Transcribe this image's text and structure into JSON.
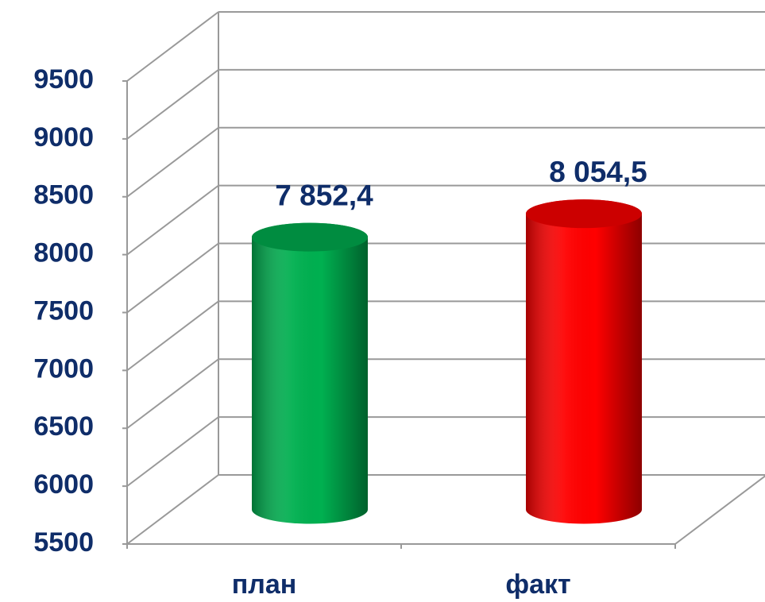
{
  "chart_data": {
    "type": "bar3d",
    "categories": [
      "план",
      "факт"
    ],
    "series": [
      {
        "values": [
          7852.4,
          8054.5
        ],
        "value_labels": [
          "7 852,4",
          "8 054,5"
        ],
        "colors": [
          "#00b050",
          "#ff0000"
        ]
      }
    ],
    "ylim": [
      5500,
      9500
    ],
    "yticks": [
      5500,
      6000,
      6500,
      7000,
      7500,
      8000,
      8500,
      9000,
      9500
    ],
    "grid": true
  }
}
